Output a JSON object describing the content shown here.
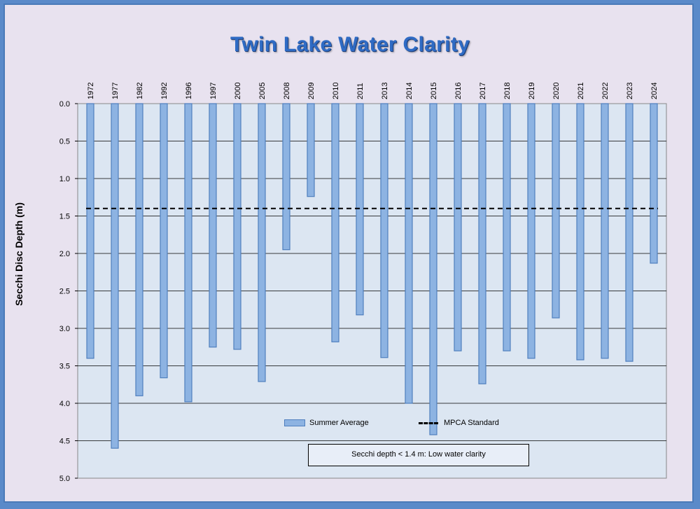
{
  "chart_data": {
    "type": "bar",
    "title": "Twin Lake Water Clarity",
    "ylabel": "Secchi Disc Depth (m)",
    "ylim": [
      0,
      5
    ],
    "y_inverted": true,
    "y_ticks": [
      "0.0",
      "0.5",
      "1.0",
      "1.5",
      "2.0",
      "2.5",
      "3.0",
      "3.5",
      "4.0",
      "4.5",
      "5.0"
    ],
    "categories": [
      "1972",
      "1977",
      "1982",
      "1992",
      "1996",
      "1997",
      "2000",
      "2005",
      "2008",
      "2009",
      "2010",
      "2011",
      "2013",
      "2014",
      "2015",
      "2016",
      "2017",
      "2018",
      "2019",
      "2020",
      "2021",
      "2022",
      "2023",
      "2024"
    ],
    "series": [
      {
        "name": "Summer Average",
        "values": [
          3.4,
          4.6,
          3.9,
          3.66,
          3.98,
          3.25,
          3.28,
          3.71,
          1.95,
          1.24,
          3.18,
          2.82,
          3.39,
          4.0,
          4.42,
          3.3,
          3.74,
          3.3,
          3.4,
          2.86,
          3.42,
          3.4,
          3.44,
          2.13
        ]
      }
    ],
    "reference_line": {
      "name": "MPCA Standard",
      "value": 1.4
    },
    "legend": {
      "bar_label": "Summer Average",
      "line_label": "MPCA Standard",
      "placement": "bottom-center"
    },
    "annotation": "Secchi depth  < 1.4 m: Low water clarity",
    "grid": true,
    "colors": {
      "bar_fill": "#8db3e2",
      "bar_stroke": "#4f7fbe",
      "plot_bg": "#dce6f2",
      "title": "#2f6bc4",
      "frame_bg": "#e8e2ef",
      "outer_bg": "#5a8ac9"
    }
  }
}
